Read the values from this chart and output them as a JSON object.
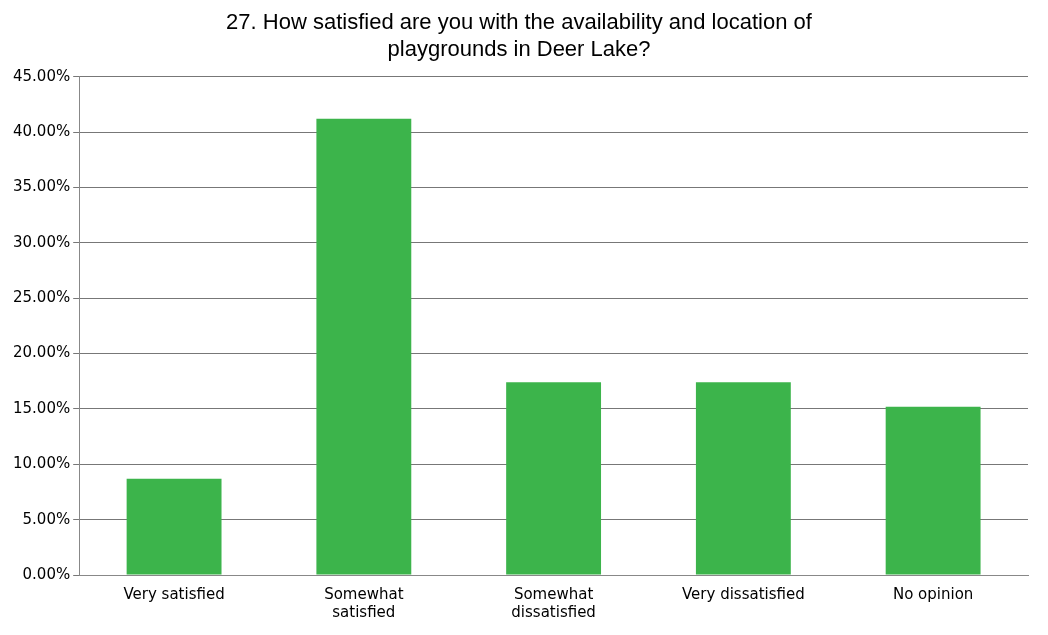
{
  "chart_data": {
    "type": "bar",
    "title": [
      "27. How satisfied are you with the availability and location of",
      "playgrounds in Deer Lake?"
    ],
    "categories": [
      [
        "Very satisfied"
      ],
      [
        "Somewhat",
        "satisfied"
      ],
      [
        "Somewhat",
        "dissatisfied"
      ],
      [
        "Very dissatisfied"
      ],
      [
        "No opinion"
      ]
    ],
    "values": [
      8.7,
      41.2,
      17.4,
      17.4,
      15.2
    ],
    "color": "#3cb44b",
    "ylim": [
      0,
      45
    ],
    "yticks": [
      {
        "value": 0,
        "label": "0.00%"
      },
      {
        "value": 5,
        "label": "5.00%"
      },
      {
        "value": 10,
        "label": "10.00%"
      },
      {
        "value": 15,
        "label": "15.00%"
      },
      {
        "value": 20,
        "label": "20.00%"
      },
      {
        "value": 25,
        "label": "25.00%"
      },
      {
        "value": 30,
        "label": "30.00%"
      },
      {
        "value": 35,
        "label": "35.00%"
      },
      {
        "value": 40,
        "label": "40.00%"
      },
      {
        "value": 45,
        "label": "45.00%"
      }
    ],
    "grid": "y",
    "legend": false
  }
}
